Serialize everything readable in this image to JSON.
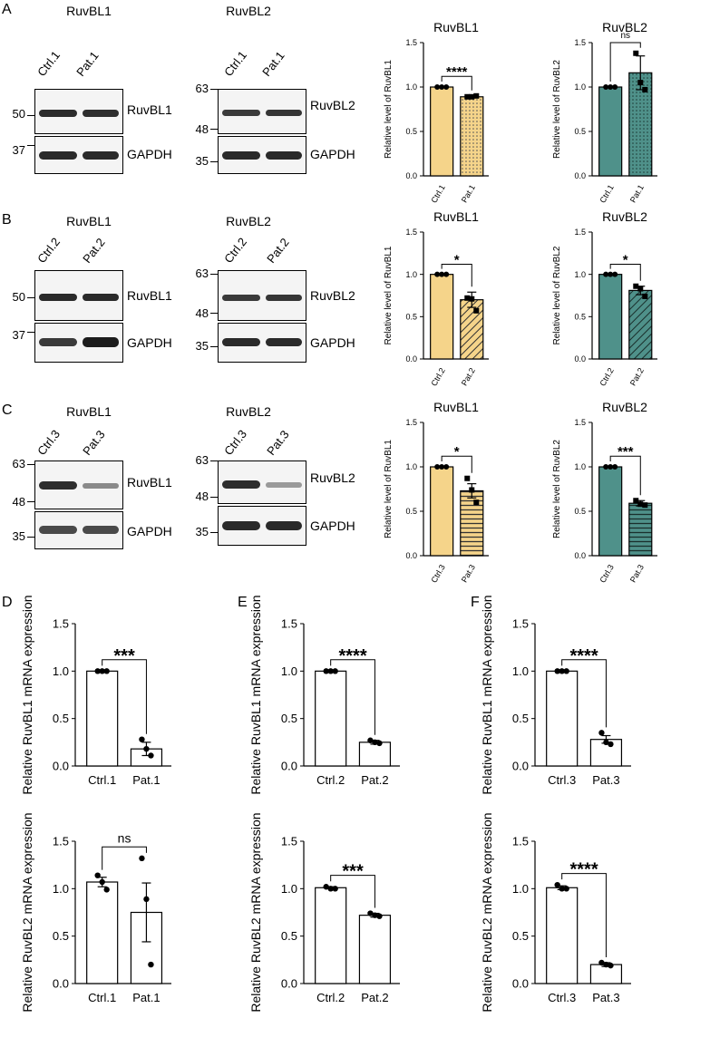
{
  "panel_labels": {
    "A": "A",
    "B": "B",
    "C": "C",
    "D": "D",
    "E": "E",
    "F": "F"
  },
  "blots": [
    {
      "col1_title": "RuvBL1",
      "col2_title": "RuvBL2",
      "ctrl": "Ctrl.1",
      "pat": "Pat.1",
      "mw1_top": "50",
      "mw1_bottom": "37",
      "mw2_a": "63",
      "mw2_b": "48",
      "mw2_c": "35",
      "protein1": "RuvBL1",
      "protein2": "RuvBL2",
      "loading": "GAPDH"
    },
    {
      "col1_title": "RuvBL1",
      "col2_title": "RuvBL2",
      "ctrl": "Ctrl.2",
      "pat": "Pat.2",
      "mw1_top": "50",
      "mw1_bottom": "37",
      "mw2_a": "63",
      "mw2_b": "48",
      "mw2_c": "35",
      "protein1": "RuvBL1",
      "protein2": "RuvBL2",
      "loading": "GAPDH"
    },
    {
      "col1_title": "RuvBL1",
      "col2_title": "RuvBL2",
      "ctrl": "Ctrl.3",
      "pat": "Pat.3",
      "mw1_a": "63",
      "mw1_b": "48",
      "mw1_c": "35",
      "mw2_a": "63",
      "mw2_b": "48",
      "mw2_c": "35",
      "protein1": "RuvBL1",
      "protein2": "RuvBL2",
      "loading": "GAPDH"
    }
  ],
  "chart_data": [
    {
      "id": "A1",
      "type": "bar",
      "title": "RuvBL1",
      "ylabel": "Relative level of RuvBL1",
      "categories": [
        "Ctrl.1",
        "Pat.1"
      ],
      "values": [
        1.0,
        0.89
      ],
      "errors": [
        0,
        0.01
      ],
      "points": [
        [
          1.0,
          1.0,
          1.0
        ],
        [
          0.89,
          0.89,
          0.9
        ]
      ],
      "ylim": [
        0,
        1.5
      ],
      "ticks": [
        "0.0",
        "0.5",
        "1.0",
        "1.5"
      ],
      "sig": "****",
      "color": "#f5d48a",
      "pattern": "dots"
    },
    {
      "id": "A2",
      "type": "bar",
      "title": "RuvBL2",
      "ylabel": "Relative level of RuvBL2",
      "categories": [
        "Ctrl.1",
        "Pat.1"
      ],
      "values": [
        1.0,
        1.16
      ],
      "errors": [
        0,
        0.19
      ],
      "points": [
        [
          1.0,
          1.0,
          1.0
        ],
        [
          1.38,
          1.05,
          0.97
        ]
      ],
      "ylim": [
        0,
        1.5
      ],
      "ticks": [
        "0.0",
        "0.5",
        "1.0",
        "1.5"
      ],
      "sig": "ns",
      "color": "#4f918a",
      "pattern": "dots"
    },
    {
      "id": "B1",
      "type": "bar",
      "title": "RuvBL1",
      "ylabel": "Relative level of RuvBL1",
      "categories": [
        "Ctrl.2",
        "Pat.2"
      ],
      "values": [
        1.0,
        0.7
      ],
      "errors": [
        0,
        0.09
      ],
      "points": [
        [
          1.0,
          1.0,
          1.0
        ],
        [
          0.72,
          0.71,
          0.57
        ]
      ],
      "ylim": [
        0,
        1.5
      ],
      "ticks": [
        "0.0",
        "0.5",
        "1.0",
        "1.5"
      ],
      "sig": "*",
      "color": "#f5d48a",
      "pattern": "diag"
    },
    {
      "id": "B2",
      "type": "bar",
      "title": "RuvBL2",
      "ylabel": "Relative level of RuvBL2",
      "categories": [
        "Ctrl.2",
        "Pat.2"
      ],
      "values": [
        1.0,
        0.81
      ],
      "errors": [
        0,
        0.05
      ],
      "points": [
        [
          1.0,
          1.0,
          1.0
        ],
        [
          0.86,
          0.83,
          0.74
        ]
      ],
      "ylim": [
        0,
        1.5
      ],
      "ticks": [
        "0.0",
        "0.5",
        "1.0",
        "1.5"
      ],
      "sig": "*",
      "color": "#4f918a",
      "pattern": "diag"
    },
    {
      "id": "C1",
      "type": "bar",
      "title": "RuvBL1",
      "ylabel": "Relative level of RuvBL1",
      "categories": [
        "Ctrl.3",
        "Pat.3"
      ],
      "values": [
        1.0,
        0.73
      ],
      "errors": [
        0,
        0.08
      ],
      "points": [
        [
          1.0,
          1.0,
          1.0
        ],
        [
          0.87,
          0.74,
          0.6
        ]
      ],
      "ylim": [
        0,
        1.5
      ],
      "ticks": [
        "0.0",
        "0.5",
        "1.0",
        "1.5"
      ],
      "sig": "*",
      "color": "#f5d48a",
      "pattern": "horiz"
    },
    {
      "id": "C2",
      "type": "bar",
      "title": "RuvBL2",
      "ylabel": "Relative level of RuvBL2",
      "categories": [
        "Ctrl.3",
        "Pat.3"
      ],
      "values": [
        1.0,
        0.59
      ],
      "errors": [
        0,
        0.03
      ],
      "points": [
        [
          1.0,
          1.0,
          1.0
        ],
        [
          0.62,
          0.58,
          0.57
        ]
      ],
      "ylim": [
        0,
        1.5
      ],
      "ticks": [
        "0.0",
        "0.5",
        "1.0",
        "1.5"
      ],
      "sig": "***",
      "color": "#4f918a",
      "pattern": "horiz"
    },
    {
      "id": "D1",
      "type": "bar",
      "title": "",
      "ylabel": "Relative RuvBL1 mRNA expression",
      "categories": [
        "Ctrl.1",
        "Pat.1"
      ],
      "values": [
        1.0,
        0.18
      ],
      "errors": [
        0,
        0.07
      ],
      "points": [
        [
          1.0,
          1.0,
          1.0
        ],
        [
          0.28,
          0.18,
          0.11
        ]
      ],
      "ylim": [
        0,
        1.5
      ],
      "ticks": [
        "0.0",
        "0.5",
        "1.0",
        "1.5"
      ],
      "sig": "***",
      "color": "#ffffff",
      "pattern": "none"
    },
    {
      "id": "E1",
      "type": "bar",
      "title": "",
      "ylabel": "Relative RuvBL1 mRNA expression",
      "categories": [
        "Ctrl.2",
        "Pat.2"
      ],
      "values": [
        1.0,
        0.25
      ],
      "errors": [
        0,
        0.02
      ],
      "points": [
        [
          1.0,
          1.0,
          1.0
        ],
        [
          0.27,
          0.25,
          0.24
        ]
      ],
      "ylim": [
        0,
        1.5
      ],
      "ticks": [
        "0.0",
        "0.5",
        "1.0",
        "1.5"
      ],
      "sig": "****",
      "color": "#ffffff",
      "pattern": "none"
    },
    {
      "id": "F1",
      "type": "bar",
      "title": "",
      "ylabel": "Relative RuvBL1 mRNA expression",
      "categories": [
        "Ctrl.3",
        "Pat.3"
      ],
      "values": [
        1.0,
        0.28
      ],
      "errors": [
        0,
        0.04
      ],
      "points": [
        [
          1.0,
          1.0,
          1.0
        ],
        [
          0.35,
          0.25,
          0.23
        ]
      ],
      "ylim": [
        0,
        1.5
      ],
      "ticks": [
        "0.0",
        "0.5",
        "1.0",
        "1.5"
      ],
      "sig": "****",
      "color": "#ffffff",
      "pattern": "none"
    },
    {
      "id": "D2",
      "type": "bar",
      "title": "",
      "ylabel": "Relative RuvBL2 mRNA expression",
      "categories": [
        "Ctrl.1",
        "Pat.1"
      ],
      "values": [
        1.07,
        0.75
      ],
      "errors": [
        0.05,
        0.31
      ],
      "points": [
        [
          1.14,
          1.07,
          0.99
        ],
        [
          1.32,
          0.89,
          0.2
        ]
      ],
      "ylim": [
        0,
        1.5
      ],
      "ticks": [
        "0.0",
        "0.5",
        "1.0",
        "1.5"
      ],
      "sig": "ns",
      "color": "#ffffff",
      "pattern": "none"
    },
    {
      "id": "E2",
      "type": "bar",
      "title": "",
      "ylabel": "Relative RuvBL2 mRNA expression",
      "categories": [
        "Ctrl.2",
        "Pat.2"
      ],
      "values": [
        1.01,
        0.72
      ],
      "errors": [
        0.01,
        0.02
      ],
      "points": [
        [
          1.02,
          1.0,
          1.0
        ],
        [
          0.74,
          0.72,
          0.71
        ]
      ],
      "ylim": [
        0,
        1.5
      ],
      "ticks": [
        "0.0",
        "0.5",
        "1.0",
        "1.5"
      ],
      "sig": "***",
      "color": "#ffffff",
      "pattern": "none"
    },
    {
      "id": "F2",
      "type": "bar",
      "title": "",
      "ylabel": "Relative RuvBL2 mRNA expression",
      "categories": [
        "Ctrl.3",
        "Pat.3"
      ],
      "values": [
        1.01,
        0.2
      ],
      "errors": [
        0.02,
        0.02
      ],
      "points": [
        [
          1.04,
          1.0,
          1.0
        ],
        [
          0.22,
          0.2,
          0.19
        ]
      ],
      "ylim": [
        0,
        1.5
      ],
      "ticks": [
        "0.0",
        "0.5",
        "1.0",
        "1.5"
      ],
      "sig": "****",
      "color": "#ffffff",
      "pattern": "none"
    }
  ]
}
